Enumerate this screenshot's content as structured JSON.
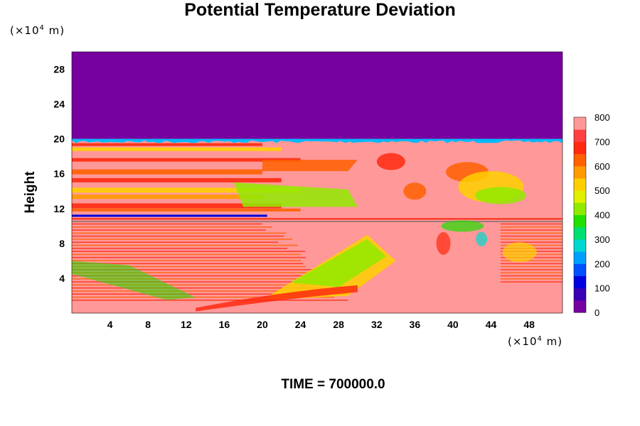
{
  "chart_data": {
    "type": "heatmap",
    "title": "Potential Temperature Deviation",
    "ylabel": "Height",
    "y_unit_prefix": "(×10",
    "y_unit_exp": "4",
    "y_unit_suffix": " m)",
    "x_unit_prefix": "(×10",
    "x_unit_exp": "4",
    "x_unit_suffix": " m)",
    "time_label": "TIME = 700000.0",
    "x_range": [
      0,
      51.5
    ],
    "y_range": [
      0,
      30
    ],
    "x_ticks": [
      4,
      8,
      12,
      16,
      20,
      24,
      28,
      32,
      36,
      40,
      44,
      48
    ],
    "x_tick_labels": [
      "4",
      "8",
      "12",
      "16",
      "20",
      "24",
      "28",
      "32",
      "36",
      "40",
      "44",
      "48"
    ],
    "y_ticks": [
      4,
      8,
      12,
      16,
      20,
      24,
      28
    ],
    "y_tick_labels": [
      "4",
      "8",
      "12",
      "16",
      "20",
      "24",
      "28"
    ],
    "colorbar": {
      "min": 0,
      "max": 800,
      "levels": [
        0,
        100,
        200,
        300,
        400,
        500,
        600,
        700,
        800
      ],
      "level_labels": [
        "0",
        "100",
        "200",
        "300",
        "400",
        "500",
        "600",
        "700",
        "800"
      ],
      "colors": [
        "#7700a0",
        "#3a00b4",
        "#0000e0",
        "#0050ff",
        "#00a0ff",
        "#00d8d0",
        "#00e070",
        "#20e000",
        "#90ea00",
        "#e0f000",
        "#ffd000",
        "#ff9a00",
        "#ff6000",
        "#ff2a10",
        "#ff4040",
        "#ff9898"
      ]
    },
    "field_description": {
      "upper_uniform_value": 0,
      "upper_uniform_above_height": 20
    }
  }
}
